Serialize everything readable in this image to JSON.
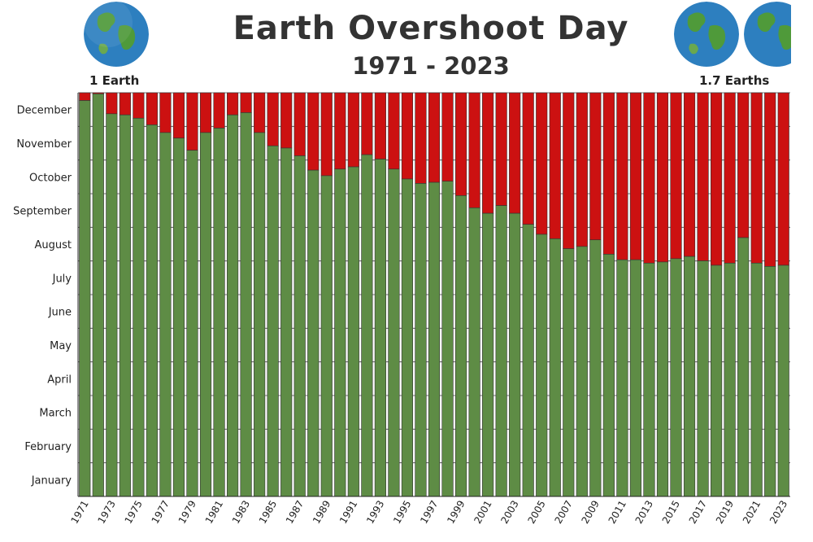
{
  "title": "Earth Overshoot Day",
  "subtitle": "1971 - 2023",
  "left_label": "1 Earth",
  "right_label": "1.7 Earths",
  "colors": {
    "used": "#5e8c45",
    "overshoot": "#cc1111",
    "text": "#333333"
  },
  "icons": [
    "earth-globe-icon"
  ],
  "chart_data": {
    "type": "bar",
    "title": "Earth Overshoot Day",
    "subtitle": "1971 - 2023",
    "y_unit": "day of year",
    "ylim": [
      0,
      365
    ],
    "y_tick_labels": [
      "January",
      "February",
      "March",
      "April",
      "May",
      "June",
      "July",
      "August",
      "September",
      "October",
      "November",
      "December"
    ],
    "categories": [
      "1971",
      "1972",
      "1973",
      "1974",
      "1975",
      "1976",
      "1977",
      "1978",
      "1979",
      "1980",
      "1981",
      "1982",
      "1983",
      "1984",
      "1985",
      "1986",
      "1987",
      "1988",
      "1989",
      "1990",
      "1991",
      "1992",
      "1993",
      "1994",
      "1995",
      "1996",
      "1997",
      "1998",
      "1999",
      "2000",
      "2001",
      "2002",
      "2003",
      "2004",
      "2005",
      "2006",
      "2007",
      "2008",
      "2009",
      "2010",
      "2011",
      "2012",
      "2013",
      "2014",
      "2015",
      "2016",
      "2017",
      "2018",
      "2019",
      "2020",
      "2021",
      "2022",
      "2023"
    ],
    "x_tick_labels": [
      "1971",
      "1973",
      "1975",
      "1977",
      "1979",
      "1981",
      "1983",
      "1985",
      "1987",
      "1989",
      "1991",
      "1993",
      "1995",
      "1997",
      "1999",
      "2001",
      "2003",
      "2005",
      "2007",
      "2009",
      "2011",
      "2013",
      "2015",
      "2017",
      "2019",
      "2021",
      "2023"
    ],
    "values": [
      358,
      364,
      346,
      345,
      342,
      336,
      329,
      324,
      313,
      329,
      333,
      345,
      347,
      329,
      317,
      315,
      308,
      295,
      290,
      296,
      298,
      309,
      305,
      296,
      287,
      283,
      284,
      285,
      272,
      261,
      256,
      263,
      256,
      246,
      237,
      233,
      224,
      226,
      232,
      219,
      214,
      214,
      211,
      212,
      215,
      217,
      213,
      209,
      211,
      234,
      211,
      208,
      209
    ],
    "series": [
      {
        "name": "",
        "color": "#5e8c45",
        "meaning": "days until overshoot"
      },
      {
        "name": "",
        "color": "#cc1111",
        "meaning": "remainder of year"
      }
    ],
    "grid": true
  }
}
